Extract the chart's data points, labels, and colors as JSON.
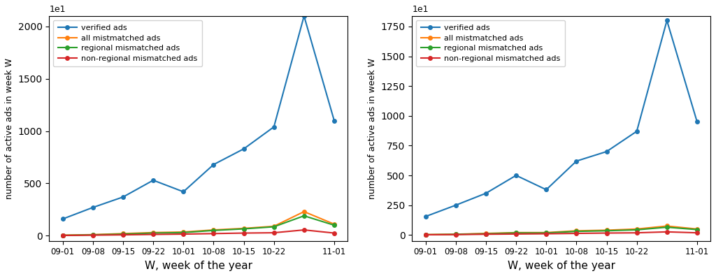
{
  "x_labels": [
    "09-01",
    "09-08",
    "09-15",
    "09-22",
    "10-01",
    "10-08",
    "10-15",
    "10-22",
    "",
    "11-01"
  ],
  "x_tick_labels_display": [
    "09-01",
    "09-08",
    "09-15",
    "09-22",
    "10-01",
    "10-08",
    "10-15",
    "10-22",
    "11-01"
  ],
  "x_tick_positions_display": [
    0,
    1,
    2,
    3,
    4,
    5,
    6,
    7,
    9
  ],
  "left": {
    "verified_ads": [
      1600,
      2700,
      3700,
      5300,
      4200,
      6800,
      8300,
      10400,
      21000,
      11000
    ],
    "all_mismatched_ads": [
      50,
      100,
      200,
      300,
      350,
      550,
      700,
      900,
      2300,
      1100
    ],
    "regional_mismatched_ads": [
      30,
      80,
      150,
      250,
      300,
      500,
      650,
      850,
      1900,
      1000
    ],
    "non_regional_mismatched_ads": [
      20,
      50,
      80,
      120,
      150,
      200,
      250,
      280,
      550,
      250
    ]
  },
  "right": {
    "verified_ads": [
      1550,
      2500,
      3500,
      5000,
      3800,
      6200,
      7000,
      8700,
      18000,
      9500
    ],
    "all_mismatched_ads": [
      30,
      60,
      130,
      200,
      200,
      350,
      400,
      500,
      750,
      500
    ],
    "regional_mismatched_ads": [
      20,
      50,
      100,
      170,
      170,
      300,
      350,
      430,
      650,
      450
    ],
    "non_regional_mismatched_ads": [
      15,
      30,
      60,
      80,
      100,
      130,
      160,
      180,
      260,
      180
    ]
  },
  "colors": {
    "verified_ads": "#1f77b4",
    "all_mismatched_ads": "#ff7f0e",
    "regional_mismatched_ads": "#2ca02c",
    "non_regional_mismatched_ads": "#d62728"
  },
  "legend_labels": [
    "verified ads",
    "all mistmatched ads",
    "regional mismatched ads",
    "non-regional mismatched ads"
  ],
  "ylabel": "number of active ads in week W",
  "xlabel": "W, week of the year",
  "left_yticks": [
    0,
    5000,
    10000,
    15000,
    20000
  ],
  "right_yticks": [
    0,
    2500,
    5000,
    7500,
    10000,
    12500,
    15000,
    17500
  ]
}
